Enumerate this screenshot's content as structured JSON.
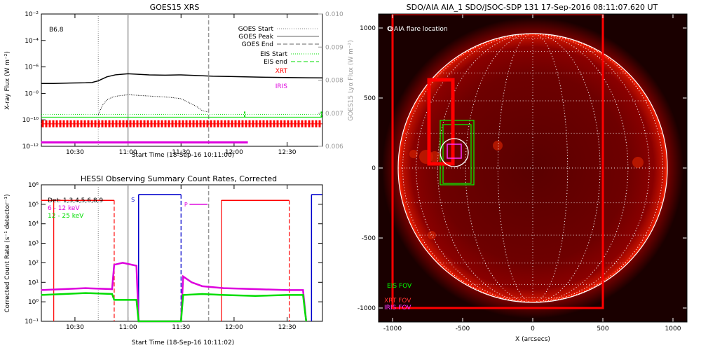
{
  "colors": {
    "background": "#ffffff",
    "axis": "#000000",
    "right_axis": "#999999",
    "xrt": "#ff0000",
    "iris": "#dd00dd",
    "eis": "#00dd00",
    "hessi_blue": "#0000cc",
    "sun_dark": "#2a0000",
    "sun_red": "#c00000",
    "grid_line": "#ffffff"
  },
  "chart_data": [
    {
      "type": "line",
      "title": "GOES15 XRS",
      "xlabel": "Start Time (18-Sep-16 10:11:00)",
      "ylabel": "X-ray Flux (W m⁻²)",
      "ylabel_right": "GOES15 Lyα Flux (W m⁻²)",
      "xlim": [
        10.1833,
        12.8333
      ],
      "ylim_log10": [
        -12,
        -2
      ],
      "ylim_right": [
        0.006,
        0.01
      ],
      "x_tick_labels": [
        "10:30",
        "11:00",
        "11:30",
        "12:00",
        "12:30"
      ],
      "x_ticks": [
        10.5,
        11.0,
        11.5,
        12.0,
        12.5
      ],
      "y_ticks_log10": [
        -12,
        -10,
        -8,
        -6,
        -4,
        -2
      ],
      "y_tick_labels": [
        "10⁻¹²",
        "10⁻¹⁰",
        "10⁻⁸",
        "10⁻⁶",
        "10⁻⁴",
        "10⁻²"
      ],
      "y_right_ticks": [
        0.006,
        0.007,
        0.008,
        0.009,
        0.01
      ],
      "y_right_tick_labels": [
        "0.006",
        "0.007",
        "0.008",
        "0.009",
        "0.010"
      ],
      "class_label": "B6.8",
      "legend": {
        "goes_start": "GOES Start",
        "goes_peak": "GOES Peak",
        "goes_end": "GOES End",
        "eis_start": "EIS Start",
        "eis_end": "EIS end",
        "xrt": "XRT",
        "iris": "IRIS"
      },
      "events": {
        "goes_start": 10.72,
        "goes_peak": 11.0,
        "goes_end": 11.76,
        "eis_start": 12.1,
        "eis_end": 12.83
      },
      "series": [
        {
          "name": "GOES long",
          "x": [
            10.18,
            10.3,
            10.45,
            10.6,
            10.66,
            10.72,
            10.8,
            10.88,
            10.95,
            11.0,
            11.08,
            11.2,
            11.35,
            11.5,
            11.65,
            11.8,
            11.95,
            12.1,
            12.3,
            12.5,
            12.7,
            12.83
          ],
          "y_log10": [
            -7.25,
            -7.25,
            -7.22,
            -7.2,
            -7.18,
            -7.05,
            -6.75,
            -6.6,
            -6.55,
            -6.52,
            -6.55,
            -6.6,
            -6.62,
            -6.6,
            -6.65,
            -6.7,
            -6.72,
            -6.75,
            -6.78,
            -6.8,
            -6.82,
            -6.83
          ]
        },
        {
          "name": "GOES short",
          "x": [
            10.72,
            10.76,
            10.8,
            10.85,
            10.9,
            10.95,
            11.0,
            11.1,
            11.2,
            11.3,
            11.4,
            11.5,
            11.6,
            11.65,
            11.7,
            11.75
          ],
          "y_log10": [
            -9.6,
            -8.9,
            -8.5,
            -8.3,
            -8.2,
            -8.15,
            -8.1,
            -8.15,
            -8.2,
            -8.25,
            -8.3,
            -8.4,
            -8.8,
            -9.0,
            -9.3,
            -9.4
          ]
        }
      ],
      "xrt_coverage": [
        10.18,
        12.83
      ],
      "iris_coverage": [
        10.18,
        12.13
      ],
      "eis_level_log10": -9.8
    },
    {
      "type": "line",
      "title": "HESSI Observing Summary Count Rates, Corrected",
      "xlabel": "Start Time (18-Sep-16 10:11:02)",
      "ylabel": "Corrected Count Rate (s⁻¹ detector⁻¹)",
      "xlim": [
        10.1833,
        12.8333
      ],
      "ylim_log10": [
        -1,
        6
      ],
      "x_tick_labels": [
        "10:30",
        "11:00",
        "11:30",
        "12:00",
        "12:30"
      ],
      "x_ticks": [
        10.5,
        11.0,
        11.5,
        12.0,
        12.5
      ],
      "y_ticks_log10": [
        -1,
        0,
        1,
        2,
        3,
        4,
        5,
        6
      ],
      "y_tick_labels": [
        "10⁻¹",
        "10⁰",
        "10¹",
        "10²",
        "10³",
        "10⁴",
        "10⁵",
        "10⁶"
      ],
      "legend": {
        "detectors": "Det: 1,3,4,5,6,8,9",
        "band1": "6 - 12 keV",
        "band2": "12 - 25 keV"
      },
      "flag_labels": {
        "s": "S",
        "p": "P"
      },
      "series": [
        {
          "name": "6 - 12 keV",
          "x": [
            10.18,
            10.4,
            10.6,
            10.85,
            10.87,
            10.95,
            11.08,
            11.1,
            11.5,
            11.52,
            11.6,
            11.7,
            11.9,
            12.2,
            12.5,
            12.65,
            12.68
          ],
          "y_log10": [
            0.6,
            0.65,
            0.7,
            0.65,
            1.9,
            2.0,
            1.85,
            -1,
            -1,
            1.3,
            1.0,
            0.8,
            0.7,
            0.65,
            0.6,
            0.6,
            -1
          ]
        },
        {
          "name": "12 - 25 keV",
          "x": [
            10.18,
            10.4,
            10.6,
            10.85,
            10.87,
            11.08,
            11.1,
            11.5,
            11.52,
            11.7,
            11.9,
            12.2,
            12.5,
            12.65,
            12.68
          ],
          "y_log10": [
            0.35,
            0.4,
            0.45,
            0.4,
            0.1,
            0.1,
            -1,
            -1,
            0.35,
            0.4,
            0.35,
            0.3,
            0.35,
            0.35,
            -1
          ]
        }
      ],
      "red_level_log10": 5.2,
      "red_segments": [
        [
          10.18,
          10.87
        ],
        [
          11.88,
          12.52
        ]
      ],
      "red_dashed_x": [
        10.87,
        12.52
      ],
      "red_solid_x": [
        10.3,
        11.88
      ],
      "blue_segments": [
        [
          11.1,
          11.5
        ],
        [
          12.73,
          12.83
        ]
      ],
      "blue_level_log10": 5.5,
      "blue_solid_x": [
        11.1,
        12.73
      ],
      "blue_dashed_x": [
        11.5
      ],
      "magenta_segments": [
        [
          11.58,
          11.75
        ]
      ],
      "magenta_level_log10": 5.0,
      "gray_dotted_x": 10.72,
      "gray_solid_x": 11.0,
      "gray_dashed_x": 11.76
    },
    {
      "type": "scatter",
      "title": "SDO/AIA AIA_1 SDO/JSOC-SDP 131 17-Sep-2016 08:11:07.620 UT",
      "xlabel": "X (arcsecs)",
      "ylabel": "",
      "xlim": [
        -1100,
        1100
      ],
      "ylim": [
        -1100,
        1100
      ],
      "x_ticks": [
        -1000,
        -500,
        0,
        500,
        1000
      ],
      "x_tick_labels": [
        "-1000",
        "-500",
        "0",
        "500",
        "1000"
      ],
      "y_ticks": [
        -1000,
        -500,
        0,
        500,
        1000
      ],
      "y_tick_labels": [
        "-1000",
        "-500",
        "0",
        "500",
        "1000"
      ],
      "solar_radius_arcsec": 960,
      "legend_flare": "O AIA flare location",
      "legend_eis": "EIS FOV",
      "legend_xrt": "XRT FOV",
      "legend_iris": "IRIS FOV",
      "flare_location": [
        -560,
        110
      ],
      "xrt_fov_small": [
        -740,
        -570,
        30,
        630
      ],
      "xrt_fov_large": [
        -1000,
        500,
        -1000,
        1100
      ],
      "eis_fov": [
        -660,
        -420,
        -120,
        340
      ],
      "eis_fov_inner": [
        -640,
        -440,
        -110,
        310
      ],
      "iris_fov": [
        -610,
        -510,
        70,
        170
      ],
      "flare_circle_radius_arcsec": 100
    }
  ]
}
